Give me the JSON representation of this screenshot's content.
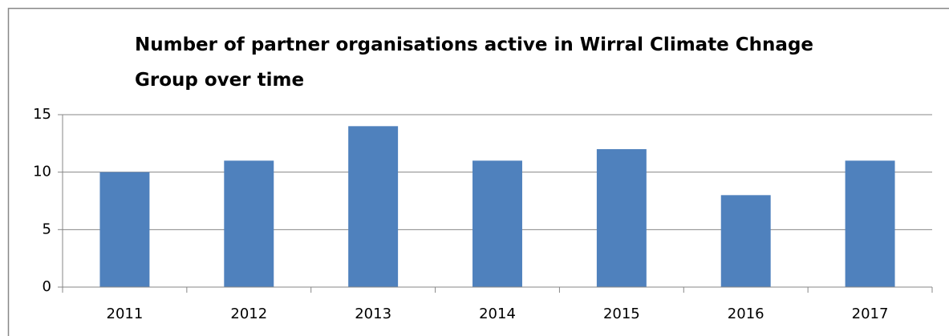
{
  "chart_data": {
    "type": "bar",
    "title": "Number of partner organisations active in Wirral Climate Chnage Group over time",
    "categories": [
      "2011",
      "2012",
      "2013",
      "2014",
      "2015",
      "2016",
      "2017"
    ],
    "values": [
      10,
      11,
      14,
      11,
      12,
      8,
      11
    ],
    "color": "#4f81bd",
    "ylim": [
      0,
      15
    ],
    "yticks": [
      0,
      5,
      10,
      15
    ],
    "grid": true
  }
}
